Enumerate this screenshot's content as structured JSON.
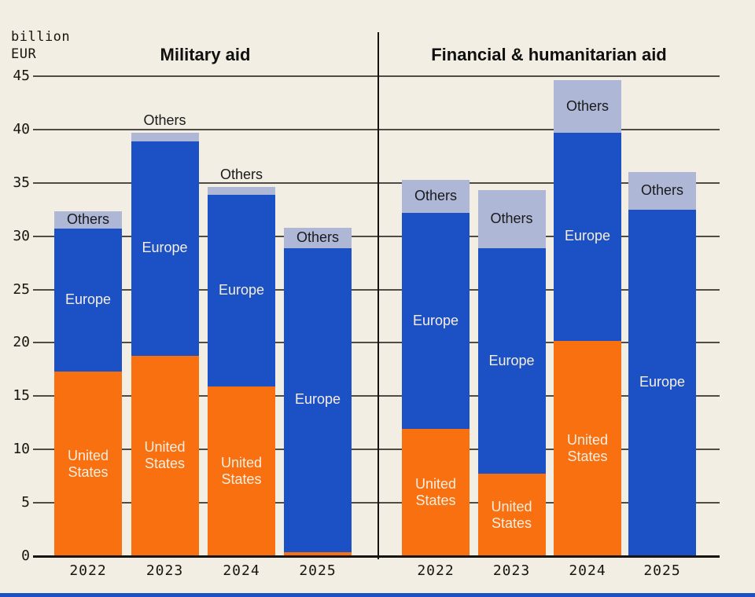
{
  "unit_label": {
    "line1": "billion",
    "line2": "EUR"
  },
  "segment_labels": {
    "united_states": [
      "United",
      "States"
    ],
    "europe": "Europe",
    "others": "Others"
  },
  "colors": {
    "background": "#F3EEE3",
    "united_states": "#F8700F",
    "europe": "#1C51C6",
    "others": "#AFB7D7",
    "gridline": "#4F4C45",
    "axis": "#15140E",
    "label_on_bar": "#F6EEE0",
    "label_dark": "#1A1A1C",
    "bottom_bar": "#1C51C6"
  },
  "chart_data": {
    "type": "bar",
    "stacked": true,
    "unit": "billion EUR",
    "ylim": [
      0,
      45
    ],
    "yticks": [
      0,
      5,
      10,
      15,
      20,
      25,
      30,
      35,
      40,
      45
    ],
    "grid": true,
    "legend_position": "on-bar-labels",
    "categories": [
      "2022",
      "2023",
      "2024",
      "2025"
    ],
    "panels": [
      {
        "title": "Military aid",
        "series": [
          {
            "name": "United States",
            "values": [
              17.3,
              18.8,
              15.9,
              0.4
            ]
          },
          {
            "name": "Europe",
            "values": [
              13.4,
              20.1,
              18.0,
              28.5
            ]
          },
          {
            "name": "Others",
            "values": [
              1.6,
              0.8,
              0.7,
              1.9
            ]
          }
        ],
        "others_label_placement": [
          "inside",
          "above",
          "above",
          "inside"
        ]
      },
      {
        "title": "Financial & humanitarian aid",
        "series": [
          {
            "name": "United States",
            "values": [
              11.9,
              7.7,
              20.2,
              0
            ]
          },
          {
            "name": "Europe",
            "values": [
              20.3,
              21.2,
              19.5,
              32.5
            ]
          },
          {
            "name": "Others",
            "values": [
              3.1,
              5.4,
              4.9,
              3.5
            ]
          }
        ],
        "others_label_placement": [
          "inside",
          "inside",
          "inside",
          "inside"
        ]
      }
    ]
  }
}
